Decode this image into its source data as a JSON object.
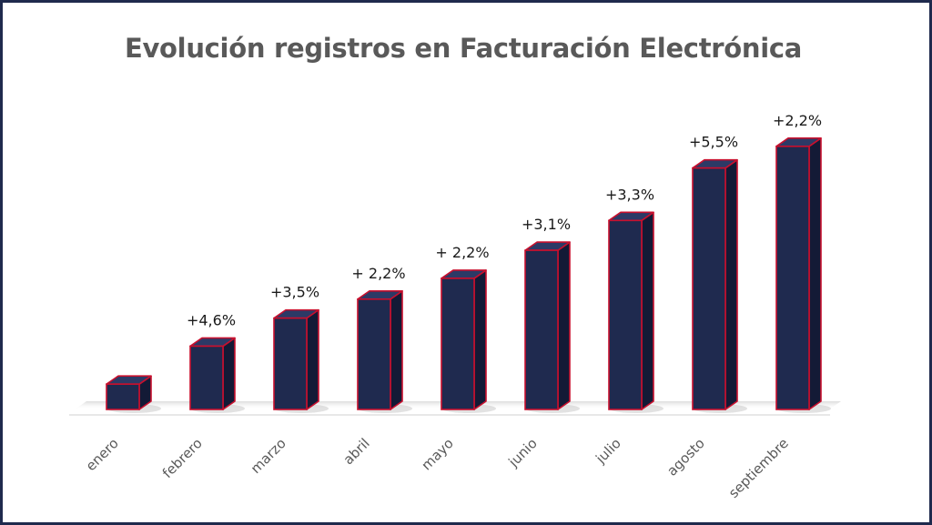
{
  "chart_data": {
    "type": "bar",
    "title": "Evolución registros en Facturación Electrónica",
    "xlabel": "",
    "ylabel": "",
    "categories": [
      "enero",
      "febrero",
      "marzo",
      "abril",
      "mayo",
      "junio",
      "julio",
      "agosto",
      "septiembre"
    ],
    "values": [
      28,
      70,
      101,
      122,
      145,
      176,
      209,
      267,
      291
    ],
    "data_labels": [
      "",
      "+4,6%",
      "+3,5%",
      "+ 2,2%",
      "+ 2,2%",
      "+3,1%",
      "+3,3%",
      "+5,5%",
      "+2,2%"
    ],
    "ylim": [
      0,
      320
    ],
    "grid": false,
    "legend": "none",
    "style": "3d-column",
    "colors": {
      "bar_front": "#1f2a4f",
      "bar_top": "#2c3a66",
      "bar_side": "#131a36",
      "bar_edge": "#c8102e",
      "frame": "#1f2a4d",
      "title": "#595959",
      "labels": "#595959",
      "data_labels": "#1a1a1a"
    }
  }
}
